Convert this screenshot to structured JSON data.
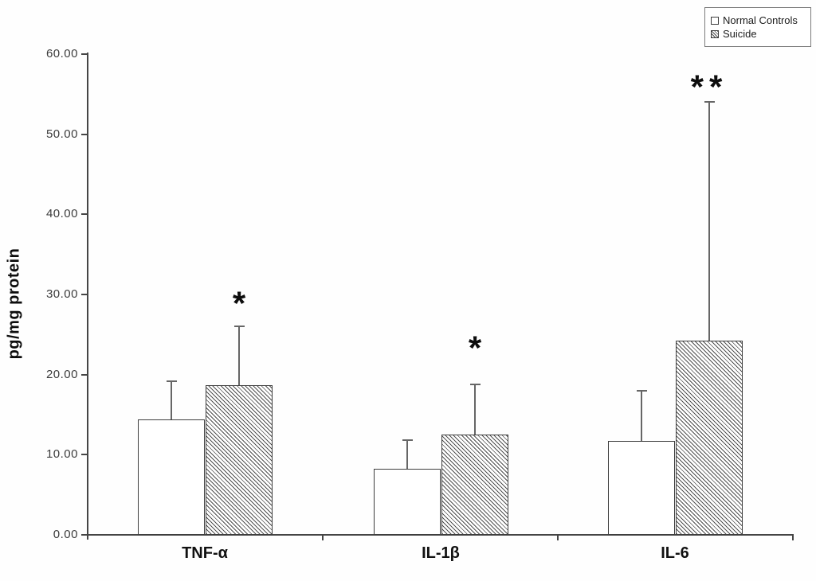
{
  "figure": {
    "background_color": "#fefefe",
    "axis_color": "#454545",
    "bar_border_color": "#3d3d3d",
    "error_bar_color": "#666666",
    "text_color": "#111111"
  },
  "chart_data": {
    "type": "bar",
    "title": "",
    "xlabel": "",
    "ylabel": "pg/mg protein",
    "ylim": [
      0,
      60
    ],
    "ytick_step": 10,
    "ytick_labels": [
      "0.00",
      "10.00",
      "20.00",
      "30.00",
      "40.00",
      "50.00",
      "60.00"
    ],
    "grid": false,
    "categories": [
      "TNF-α",
      "IL-1β",
      "IL-6"
    ],
    "series": [
      {
        "name": "Normal Controls",
        "fill": "white",
        "values": [
          14.4,
          8.2,
          11.7
        ],
        "error_up": [
          4.8,
          3.6,
          6.3
        ]
      },
      {
        "name": "Suicide",
        "fill": "hatch",
        "values": [
          18.7,
          12.5,
          24.2
        ],
        "error_up": [
          7.3,
          6.3,
          29.8
        ]
      }
    ],
    "annotations": [
      {
        "category": "TNF-α",
        "series": "Suicide",
        "text": "*",
        "y": 29.2
      },
      {
        "category": "IL-1β",
        "series": "Suicide",
        "text": "*",
        "y": 23.6
      },
      {
        "category": "IL-6",
        "series": "Suicide",
        "text": "**",
        "y": 56.2
      }
    ],
    "legend": {
      "position": "top-right",
      "entries": [
        "Normal Controls",
        "Suicide"
      ]
    }
  }
}
